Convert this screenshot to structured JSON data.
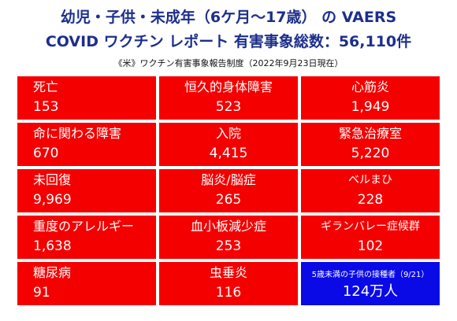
{
  "header": {
    "title_line1": "幼児・子供・未成年（6ケ月～17歳） の VAERS",
    "title_line2": "COVID ワクチン レポート 有害事象総数：56,110件",
    "subtitle": "《米》ワクチン有害事象報告制度（2022年9月23日現在）"
  },
  "stats": [
    {
      "label": "死亡",
      "value": "153"
    },
    {
      "label": "恒久的身体障害",
      "value": "523"
    },
    {
      "label": "心筋炎",
      "value": "1,949"
    },
    {
      "label": "命に関わる障害",
      "value": "670"
    },
    {
      "label": "入院",
      "value": "4,415"
    },
    {
      "label": "緊急治療室",
      "value": "5,220"
    },
    {
      "label": "未回復",
      "value": "9,969"
    },
    {
      "label": "脳炎/脳症",
      "value": "265"
    },
    {
      "label": "ベルまひ",
      "value": "228"
    },
    {
      "label": "重度のアレルギー",
      "value": "1,638"
    },
    {
      "label": "血小板減少症",
      "value": "253"
    },
    {
      "label": "ギランバレー症候群",
      "value": "102"
    },
    {
      "label": "糖尿病",
      "value": "91"
    },
    {
      "label": "虫垂炎",
      "value": "116"
    },
    {
      "label": "5歳未満の子供の接種者（9/21）",
      "value": "124万人"
    }
  ],
  "colors": {
    "title": "#1c2f8c",
    "stat_box": "#f40000",
    "highlight_box": "#0a0ae6"
  }
}
